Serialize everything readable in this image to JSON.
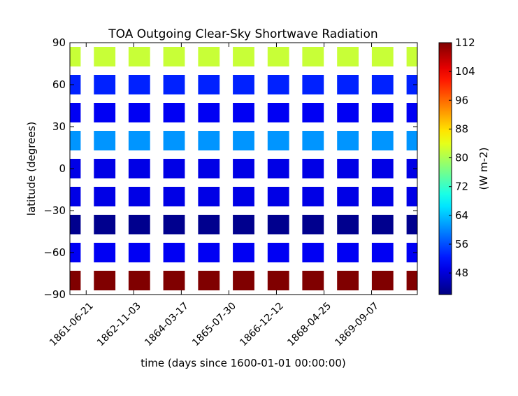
{
  "chart_data": {
    "type": "heatmap",
    "title": "TOA Outgoing Clear-Sky Shortwave Radiation",
    "xlabel": "time (days since 1600-01-01 00:00:00)",
    "ylabel": "latitude (degrees)",
    "colorbar_label": "(W m-2)",
    "colormap": "jet",
    "clim": [
      42,
      112
    ],
    "ylim": [
      -90,
      90
    ],
    "xlim": [
      "1861-01-01",
      "1871-01-01"
    ],
    "xticks": [
      "1861-06-21",
      "1862-11-03",
      "1864-03-17",
      "1865-07-30",
      "1866-12-12",
      "1868-04-25",
      "1869-09-07"
    ],
    "yticks": [
      -90,
      -60,
      -30,
      0,
      30,
      60,
      90
    ],
    "colorbar_ticks": [
      48,
      56,
      64,
      72,
      80,
      88,
      96,
      104,
      112
    ],
    "grid": false,
    "x_cells": [
      "1861-01-01",
      "1862-01-01",
      "1863-01-01",
      "1864-01-01",
      "1865-01-01",
      "1866-01-01",
      "1867-01-01",
      "1868-01-01",
      "1869-01-01",
      "1870-01-01",
      "1871-01-01"
    ],
    "y_cells": [
      -80,
      -60,
      -40,
      -20,
      0,
      20,
      40,
      60,
      80
    ],
    "cell_width": "partial",
    "cell_height_deg": 14,
    "values_by_latitude": [
      {
        "lat": 80,
        "value": 82
      },
      {
        "lat": 60,
        "value": 53
      },
      {
        "lat": 40,
        "value": 50
      },
      {
        "lat": 20,
        "value": 61
      },
      {
        "lat": 0,
        "value": 49
      },
      {
        "lat": -20,
        "value": 49
      },
      {
        "lat": -40,
        "value": 43
      },
      {
        "lat": -60,
        "value": 50
      },
      {
        "lat": -80,
        "value": 112
      }
    ]
  }
}
